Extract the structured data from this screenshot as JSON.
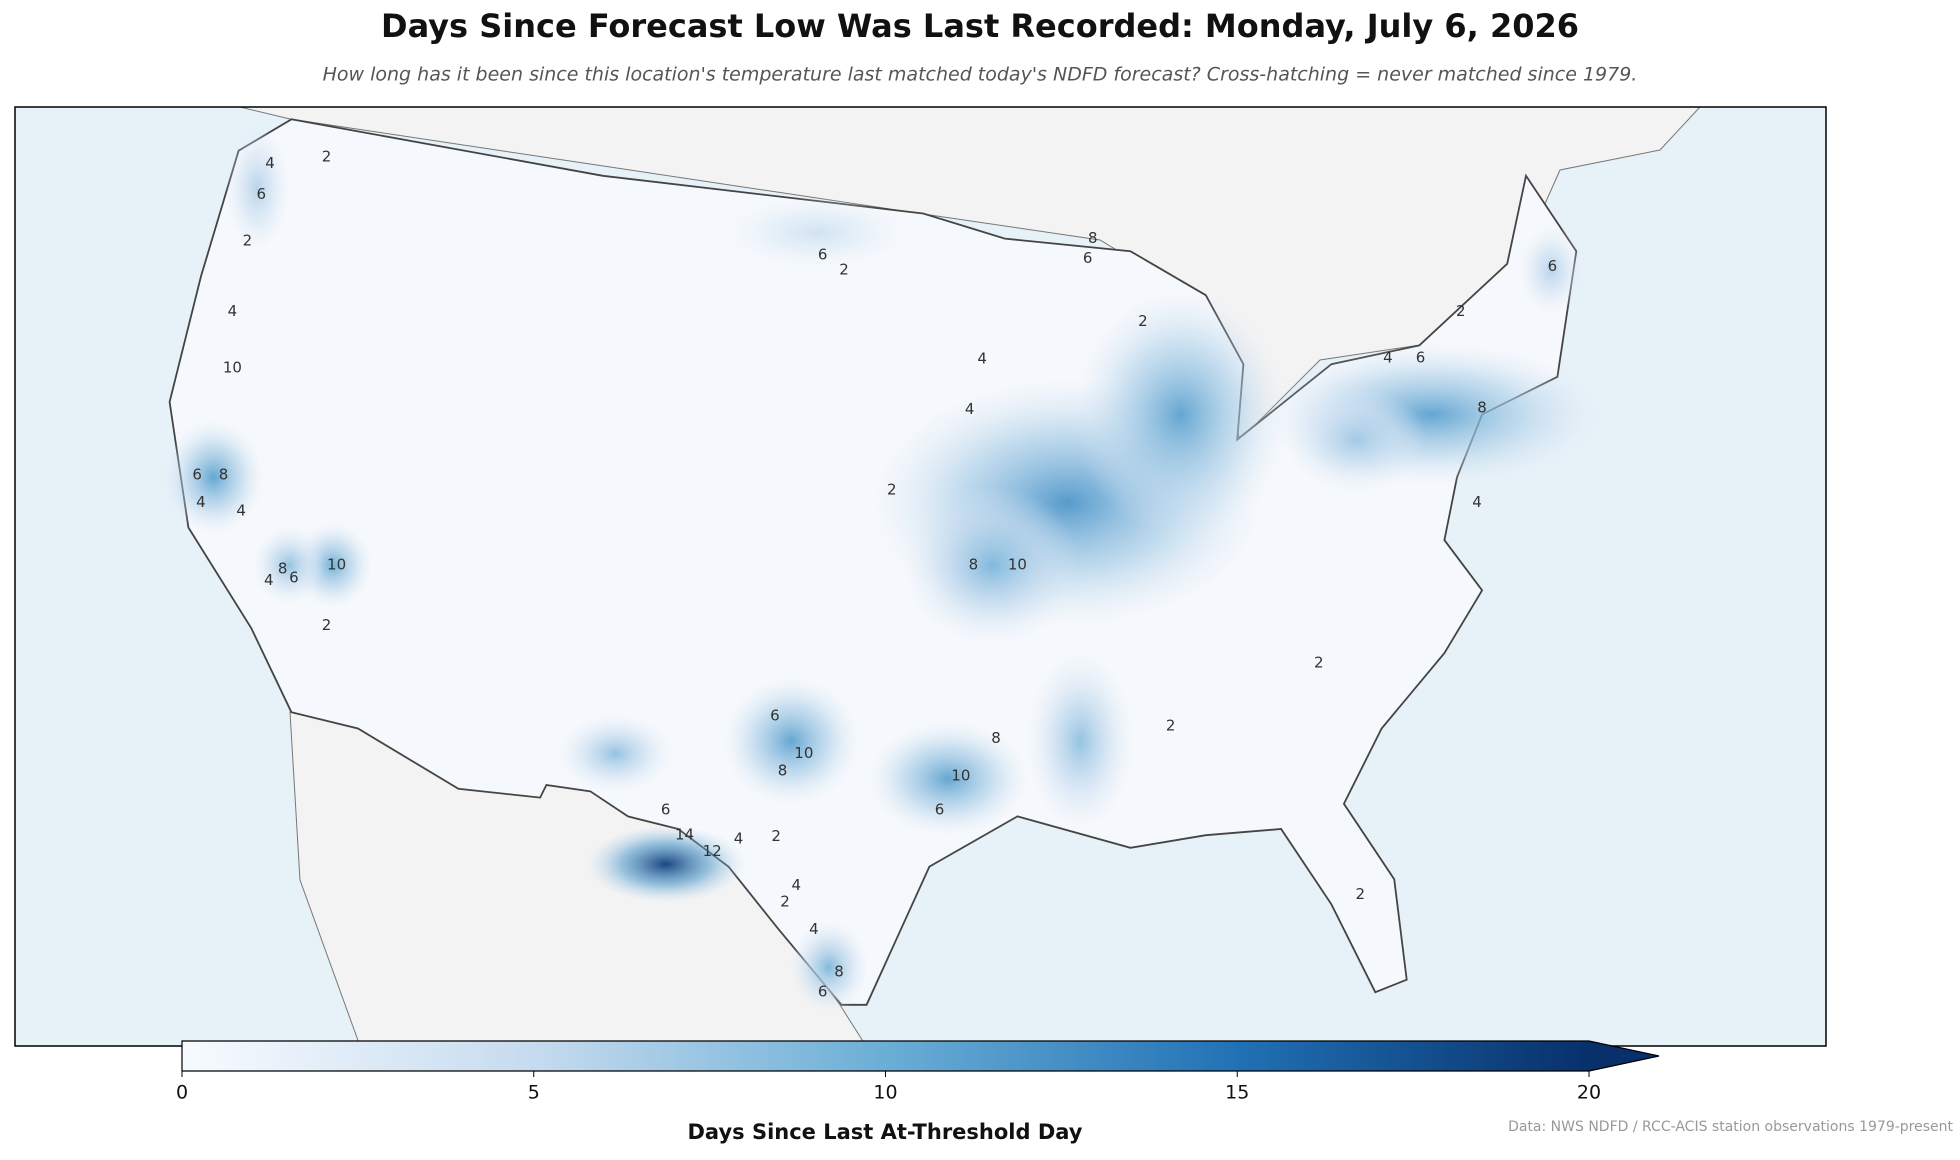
{
  "title": "Days Since Forecast Low Was Last Recorded: Monday, July 6, 2026",
  "subtitle": "How long has it been since this location's temperature last matched today's NDFD forecast? Cross-hatching = never matched since 1979.",
  "map": {
    "hotspot_peaks": [
      19,
      12,
      11,
      11,
      11,
      10,
      8,
      11,
      11,
      9,
      6,
      6,
      4,
      8,
      8,
      9,
      7
    ],
    "contour_labels": [
      2,
      4,
      6,
      2,
      4,
      10,
      8,
      6,
      4,
      10,
      8,
      6,
      4,
      2,
      4,
      6,
      2,
      2,
      4,
      4,
      10,
      8,
      2,
      8,
      6,
      10,
      8,
      10,
      6,
      8,
      14,
      12,
      6,
      4,
      2,
      6,
      4,
      4,
      8,
      6,
      2,
      6,
      4,
      6,
      8,
      4,
      2,
      2,
      2,
      2
    ]
  },
  "colorbar": {
    "label": "Days Since Last At-Threshold Day",
    "lim": [
      0,
      20
    ],
    "ticks": [
      0,
      5,
      10,
      15,
      20
    ],
    "extend": "max",
    "colors": [
      "#f7fbff",
      "#c6dbef",
      "#6baed6",
      "#2171b5",
      "#08306b"
    ]
  },
  "credit": "Data: NWS NDFD / RCC-ACIS station observations 1979-present"
}
